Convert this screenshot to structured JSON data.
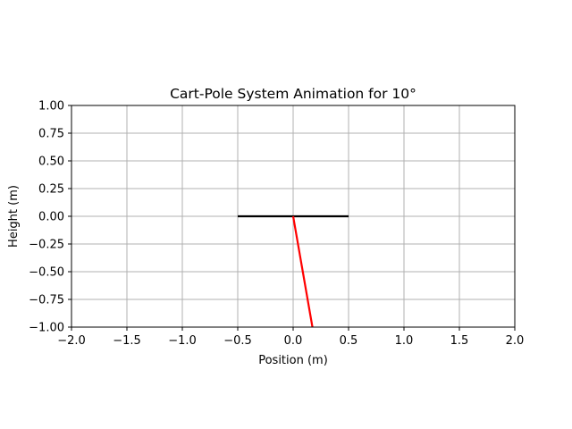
{
  "chart_data": {
    "type": "line",
    "title": "Cart-Pole System Animation for 10°",
    "xlabel": "Position (m)",
    "ylabel": "Height (m)",
    "xlim": [
      -2.0,
      2.0
    ],
    "ylim": [
      -1.0,
      1.0
    ],
    "grid": true,
    "xticks": [
      -2.0,
      -1.5,
      -1.0,
      -0.5,
      0.0,
      0.5,
      1.0,
      1.5,
      2.0
    ],
    "xtick_labels": [
      "−2.0",
      "−1.5",
      "−1.0",
      "−0.5",
      "0.0",
      "0.5",
      "1.0",
      "1.5",
      "2.0"
    ],
    "yticks": [
      1.0,
      0.75,
      0.5,
      0.25,
      0.0,
      -0.25,
      -0.5,
      -0.75,
      -1.0
    ],
    "ytick_labels": [
      "1.00",
      "0.75",
      "0.50",
      "0.25",
      "0.00",
      "−0.25",
      "−0.50",
      "−0.75",
      "−1.00"
    ],
    "series": [
      {
        "color": "#000000",
        "x": [
          -0.5,
          0.5
        ],
        "y": [
          0.0,
          0.0
        ]
      },
      {
        "color": "#ff0000",
        "x": [
          0.0,
          0.174
        ],
        "y": [
          0.0,
          -1.0
        ]
      }
    ]
  }
}
